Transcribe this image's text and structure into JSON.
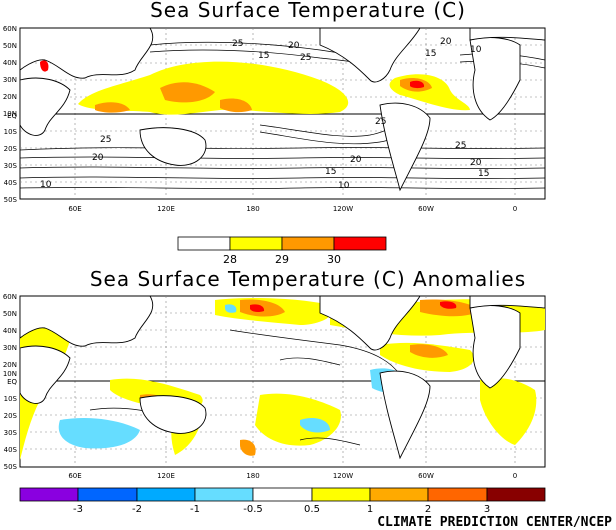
{
  "map1": {
    "title": "Sea Surface Temperature (C)",
    "lat_labels": [
      "60N",
      "50N",
      "40N",
      "30N",
      "20N",
      "10N",
      "EQ",
      "10S",
      "20S",
      "30S",
      "40S",
      "50S"
    ],
    "lon_labels": [
      "60E",
      "120E",
      "180",
      "120W",
      "60W",
      "0"
    ],
    "contour_labels": [
      "25",
      "20",
      "15",
      "25",
      "20",
      "15",
      "10",
      "25",
      "20",
      "25",
      "20",
      "15",
      "10",
      "25",
      "20",
      "15",
      "10"
    ],
    "colorbar": {
      "colors": [
        "#ffffff",
        "#ffff00",
        "#ff9900",
        "#ff0000"
      ],
      "labels": [
        "28",
        "29",
        "30"
      ]
    }
  },
  "map2": {
    "title": "Sea Surface Temperature (C) Anomalies",
    "lat_labels": [
      "60N",
      "50N",
      "40N",
      "30N",
      "20N",
      "10N",
      "EQ",
      "10S",
      "20S",
      "30S",
      "40S",
      "50S"
    ],
    "lon_labels": [
      "60E",
      "120E",
      "180",
      "120W",
      "60W",
      "0"
    ],
    "colorbar": {
      "colors": [
        "#8a00e0",
        "#0066ff",
        "#00aaff",
        "#66ddff",
        "#ffffff",
        "#ffff00",
        "#ffaa00",
        "#ff6600",
        "#ff0000",
        "#880000"
      ],
      "labels": [
        "-3",
        "-2",
        "-1",
        "-0.5",
        "0.5",
        "1",
        "2",
        "3"
      ]
    }
  },
  "credit": "CLIMATE PREDICTION CENTER/NCEP"
}
